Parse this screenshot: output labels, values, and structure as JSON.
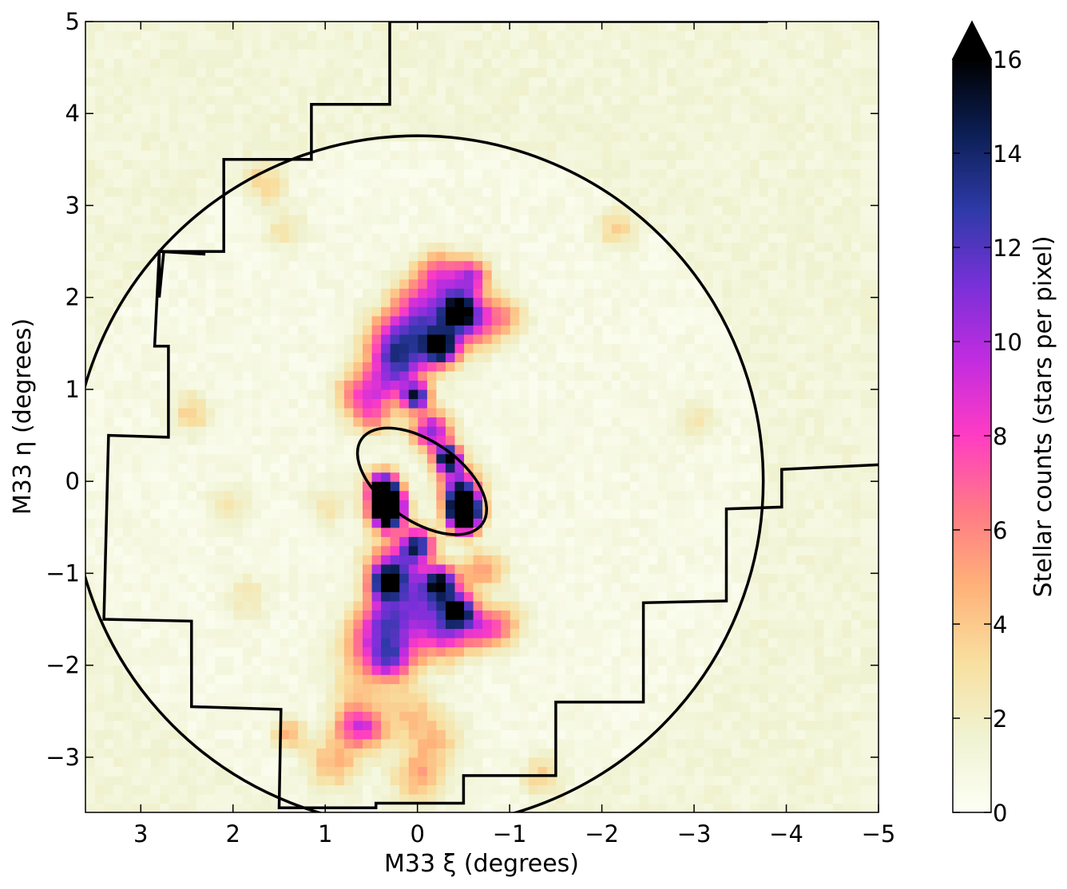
{
  "chart_data": {
    "type": "heatmap",
    "title": "",
    "xlabel": "M33 ξ (degrees)",
    "ylabel": "M33 η (degrees)",
    "xlim": [
      3.6,
      -5
    ],
    "ylim": [
      -3.6,
      5
    ],
    "x_inverted": true,
    "x_ticks": [
      3,
      2,
      1,
      0,
      -1,
      -2,
      -3,
      -4,
      -5
    ],
    "x_tick_labels": [
      "3",
      "2",
      "1",
      "0",
      "−1",
      "−2",
      "−3",
      "−4",
      "−5"
    ],
    "y_ticks": [
      -3,
      -2,
      -1,
      0,
      1,
      2,
      3,
      4,
      5
    ],
    "y_tick_labels": [
      "−3",
      "−2",
      "−1",
      "0",
      "1",
      "2",
      "3",
      "4",
      "5"
    ],
    "grid": false,
    "colorbar": {
      "label": "Stellar counts (stars per pixel)",
      "min": 0,
      "max": 16,
      "extend": "max",
      "ticks": [
        0,
        2,
        4,
        6,
        8,
        10,
        12,
        14,
        16
      ],
      "tick_labels": [
        "0",
        "2",
        "4",
        "6",
        "8",
        "10",
        "12",
        "14",
        "16"
      ],
      "colors": [
        "#fdfff5",
        "#f0f3d2",
        "#f8df9f",
        "#ffb279",
        "#ff7a85",
        "#ff3cc3",
        "#c22ce0",
        "#7830d8",
        "#2e3aa8",
        "#0c1f55",
        "#000000"
      ]
    },
    "background_level": 0.6,
    "sources": [
      {
        "xi": 0.33,
        "eta": -0.22,
        "value": 16,
        "sigma": 0.12
      },
      {
        "xi": 0.33,
        "eta": -0.36,
        "value": 16,
        "sigma": 0.12
      },
      {
        "xi": 0.38,
        "eta": -0.05,
        "value": 13,
        "sigma": 0.12
      },
      {
        "xi": -0.5,
        "eta": -0.25,
        "value": 16,
        "sigma": 0.12
      },
      {
        "xi": -0.5,
        "eta": -0.4,
        "value": 16,
        "sigma": 0.12
      },
      {
        "xi": -0.33,
        "eta": 0.25,
        "value": 16,
        "sigma": 0.1
      },
      {
        "xi": 0.02,
        "eta": 0.92,
        "value": 13,
        "sigma": 0.1
      },
      {
        "xi": 0.0,
        "eta": -0.68,
        "value": 12,
        "sigma": 0.12
      },
      {
        "xi": -0.15,
        "eta": 0.55,
        "value": 10,
        "sigma": 0.15
      },
      {
        "xi": -0.45,
        "eta": -0.05,
        "value": 10,
        "sigma": 0.15
      },
      {
        "xi": -0.25,
        "eta": 1.45,
        "value": 12,
        "sigma": 0.12
      },
      {
        "xi": -0.45,
        "eta": 1.85,
        "value": 12,
        "sigma": 0.12
      },
      {
        "xi": -0.6,
        "eta": 1.75,
        "value": 7,
        "sigma": 0.2
      },
      {
        "xi": -0.6,
        "eta": 2.25,
        "value": 6,
        "sigma": 0.12
      },
      {
        "xi": -0.4,
        "eta": 2.15,
        "value": 5,
        "sigma": 0.2
      },
      {
        "xi": -0.1,
        "eta": 1.65,
        "value": 9,
        "sigma": 0.25
      },
      {
        "xi": 0.3,
        "eta": 1.55,
        "value": 6,
        "sigma": 0.2
      },
      {
        "xi": 0.2,
        "eta": 1.25,
        "value": 8,
        "sigma": 0.2
      },
      {
        "xi": 0.45,
        "eta": 1.0,
        "value": 5,
        "sigma": 0.2
      },
      {
        "xi": 0.7,
        "eta": 0.95,
        "value": 4,
        "sigma": 0.15
      },
      {
        "xi": 0.5,
        "eta": 0.7,
        "value": 4,
        "sigma": 0.15
      },
      {
        "xi": -0.95,
        "eta": 1.8,
        "value": 4,
        "sigma": 0.15
      },
      {
        "xi": -0.2,
        "eta": 2.3,
        "value": 4,
        "sigma": 0.15
      },
      {
        "xi": 0.0,
        "eta": 2.0,
        "value": 4,
        "sigma": 0.2
      },
      {
        "xi": 0.35,
        "eta": -1.1,
        "value": 12,
        "sigma": 0.12
      },
      {
        "xi": 0.25,
        "eta": -0.9,
        "value": 8,
        "sigma": 0.2
      },
      {
        "xi": -0.25,
        "eta": -1.1,
        "value": 12,
        "sigma": 0.12
      },
      {
        "xi": -0.45,
        "eta": -1.4,
        "value": 13,
        "sigma": 0.12
      },
      {
        "xi": 0.35,
        "eta": -1.5,
        "value": 8,
        "sigma": 0.2
      },
      {
        "xi": -0.05,
        "eta": -1.3,
        "value": 8,
        "sigma": 0.25
      },
      {
        "xi": -0.3,
        "eta": -1.65,
        "value": 7,
        "sigma": 0.2
      },
      {
        "xi": -0.7,
        "eta": -1.6,
        "value": 6,
        "sigma": 0.15
      },
      {
        "xi": -0.95,
        "eta": -1.55,
        "value": 4,
        "sigma": 0.15
      },
      {
        "xi": -0.65,
        "eta": -0.95,
        "value": 3,
        "sigma": 0.15
      },
      {
        "xi": 0.6,
        "eta": -1.75,
        "value": 4,
        "sigma": 0.2
      },
      {
        "xi": 0.35,
        "eta": -1.95,
        "value": 6,
        "sigma": 0.15
      },
      {
        "xi": 0.2,
        "eta": -1.85,
        "value": 5,
        "sigma": 0.2
      },
      {
        "xi": 0.65,
        "eta": -2.25,
        "value": 3,
        "sigma": 0.2
      },
      {
        "xi": 0.7,
        "eta": -2.65,
        "value": 6,
        "sigma": 0.15
      },
      {
        "xi": 0.5,
        "eta": -2.7,
        "value": 4,
        "sigma": 0.15
      },
      {
        "xi": 1.4,
        "eta": -2.75,
        "value": 4,
        "sigma": 0.12
      },
      {
        "xi": 0.9,
        "eta": -3.05,
        "value": 4,
        "sigma": 0.2
      },
      {
        "xi": 0.0,
        "eta": -3.2,
        "value": 4,
        "sigma": 0.2
      },
      {
        "xi": -0.2,
        "eta": -2.8,
        "value": 3,
        "sigma": 0.2
      },
      {
        "xi": 0.1,
        "eta": -2.5,
        "value": 3,
        "sigma": 0.2
      },
      {
        "xi": 2.45,
        "eta": 0.75,
        "value": 3,
        "sigma": 0.15
      },
      {
        "xi": 1.65,
        "eta": 3.25,
        "value": 3,
        "sigma": 0.15
      },
      {
        "xi": -2.15,
        "eta": 2.75,
        "value": 3,
        "sigma": 0.15
      },
      {
        "xi": 1.45,
        "eta": 2.75,
        "value": 2,
        "sigma": 0.15
      },
      {
        "xi": 1.85,
        "eta": -1.25,
        "value": 2,
        "sigma": 0.15
      },
      {
        "xi": -1.35,
        "eta": -3.2,
        "value": 3,
        "sigma": 0.15
      },
      {
        "xi": -0.8,
        "eta": -0.95,
        "value": 2,
        "sigma": 0.15
      },
      {
        "xi": 0.95,
        "eta": -0.25,
        "value": 2,
        "sigma": 0.15
      },
      {
        "xi": -3.0,
        "eta": 0.65,
        "value": 2,
        "sigma": 0.15
      },
      {
        "xi": 2.05,
        "eta": -0.25,
        "value": 2,
        "sigma": 0.15
      }
    ],
    "footprint": [
      [
        -3.8,
        5.0
      ],
      [
        0.3,
        5.0
      ],
      [
        0.3,
        4.1
      ],
      [
        1.15,
        4.1
      ],
      [
        1.15,
        3.5
      ],
      [
        2.1,
        3.5
      ],
      [
        2.1,
        2.5
      ],
      [
        2.8,
        2.5
      ],
      [
        2.8,
        2.0
      ],
      [
        2.75,
        2.5
      ],
      [
        2.3,
        2.47
      ],
      [
        2.8,
        2.5
      ],
      [
        2.85,
        1.47
      ],
      [
        2.7,
        1.47
      ],
      [
        2.7,
        0.48
      ],
      [
        3.35,
        0.5
      ],
      [
        3.4,
        -1.5
      ],
      [
        2.45,
        -1.52
      ],
      [
        2.45,
        -2.45
      ],
      [
        1.48,
        -2.48
      ],
      [
        1.5,
        -3.55
      ],
      [
        0.45,
        -3.55
      ],
      [
        0.45,
        -3.5
      ],
      [
        -0.5,
        -3.5
      ],
      [
        -0.5,
        -3.2
      ],
      [
        -1.5,
        -3.2
      ],
      [
        -1.5,
        -2.4
      ],
      [
        -2.45,
        -2.4
      ],
      [
        -2.45,
        -1.32
      ],
      [
        -3.35,
        -1.3
      ],
      [
        -3.35,
        -0.3
      ],
      [
        -3.95,
        -0.28
      ],
      [
        -3.95,
        0.13
      ],
      [
        -5.0,
        0.18
      ]
    ],
    "halo_circle": {
      "center": [
        0,
        0
      ],
      "radius": 3.75
    },
    "disk_ellipse": {
      "center": [
        -0.05,
        0.0
      ],
      "semi_major": 0.8,
      "semi_minor": 0.43,
      "pa_deg": 55
    }
  }
}
